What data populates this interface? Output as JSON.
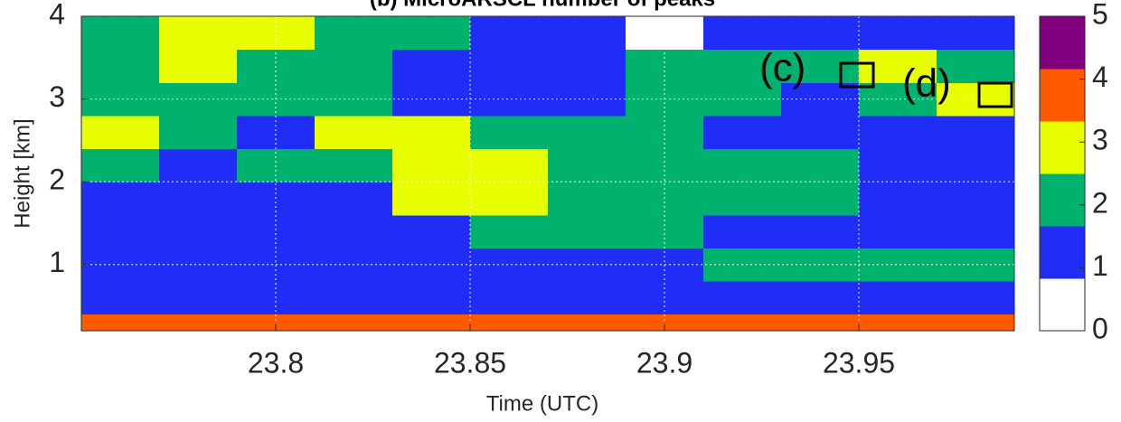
{
  "chart_data": {
    "type": "heatmap",
    "title": "(b) MicroARSCL number of peaks",
    "x_label": "Time (UTC)",
    "y_label": "Height [km]",
    "xlim": [
      23.75,
      23.99
    ],
    "ylim": [
      0.2,
      4
    ],
    "xticks": [
      23.8,
      23.85,
      23.9,
      23.95
    ],
    "yticks": [
      1,
      2,
      3,
      4
    ],
    "grid": true,
    "xbins": [
      23.75,
      23.77,
      23.79,
      23.81,
      23.83,
      23.85,
      23.87,
      23.89,
      23.91,
      23.93,
      23.95,
      23.97,
      23.99
    ],
    "ybins": [
      0.2,
      0.4,
      0.8,
      1.2,
      1.6,
      2.0,
      2.4,
      2.8,
      3.2,
      3.6,
      4.0
    ],
    "z": [
      [
        4,
        4,
        4,
        4,
        4,
        4,
        4,
        4,
        4,
        4,
        4,
        4
      ],
      [
        1,
        1,
        1,
        1,
        1,
        1,
        1,
        1,
        1,
        1,
        1,
        1
      ],
      [
        1,
        1,
        1,
        1,
        1,
        1,
        1,
        1,
        2,
        2,
        2,
        2
      ],
      [
        1,
        1,
        1,
        1,
        1,
        2,
        2,
        2,
        1,
        1,
        1,
        1
      ],
      [
        1,
        1,
        1,
        1,
        3,
        3,
        2,
        2,
        2,
        2,
        1,
        1
      ],
      [
        2,
        1,
        2,
        2,
        3,
        3,
        2,
        2,
        2,
        2,
        1,
        1
      ],
      [
        3,
        2,
        1,
        3,
        3,
        2,
        2,
        2,
        1,
        1,
        1,
        1
      ],
      [
        2,
        2,
        2,
        2,
        1,
        1,
        1,
        2,
        2,
        1,
        2,
        3
      ],
      [
        2,
        3,
        2,
        2,
        1,
        1,
        1,
        2,
        2,
        2,
        3,
        2
      ],
      [
        2,
        3,
        3,
        2,
        2,
        1,
        1,
        0,
        1,
        1,
        1,
        1
      ]
    ],
    "clim": [
      0,
      5
    ],
    "colors": [
      "#ffffff",
      "#1f2df5",
      "#00b26e",
      "#e8ff00",
      "#ff5a00",
      "#800080"
    ],
    "colorbar_ticks": [
      0,
      1,
      2,
      3,
      4,
      5
    ],
    "annotations": [
      "(c)",
      "(d)"
    ]
  }
}
